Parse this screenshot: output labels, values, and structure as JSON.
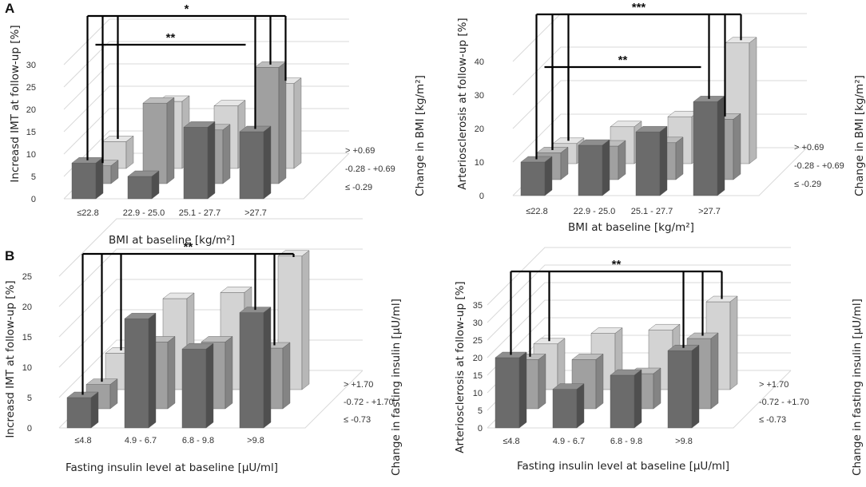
{
  "panel_labels": [
    "A",
    "B"
  ],
  "chart_data": [
    {
      "type": "bar",
      "panel": "A",
      "categories": [
        "≤22.8",
        "22.9 - 25.0",
        "25.1 - 27.7",
        ">27.7"
      ],
      "depth_categories": [
        "≤ -0.29",
        "-0.28 - +0.69",
        "> +0.69"
      ],
      "series": [
        {
          "name": "≤ -0.29",
          "values": [
            8,
            5,
            16,
            15
          ]
        },
        {
          "name": "-0.28 - +0.69",
          "values": [
            4,
            18,
            12,
            26
          ]
        },
        {
          "name": "> +0.69",
          "values": [
            6,
            15,
            14,
            19
          ]
        }
      ],
      "yticks": [
        0,
        5,
        10,
        15,
        20,
        25,
        30
      ],
      "ylim": [
        0,
        30
      ],
      "ylabel": "Increasd IMT at follow-up [%]",
      "xlabel": "BMI at baseline [kg/m²]",
      "zlabel": "Change in BMI [kg/m²]",
      "significance": [
        {
          "label": "*",
          "from": 0,
          "to": 3
        },
        {
          "label": "**",
          "from": 0,
          "to": 3
        }
      ]
    },
    {
      "type": "bar",
      "panel": "A",
      "categories": [
        "≤22.8",
        "22.9 - 25.0",
        "25.1 - 27.7",
        ">27.7"
      ],
      "depth_categories": [
        "≤ -0.29",
        "-0.28 - +0.69",
        "> +0.69"
      ],
      "series": [
        {
          "name": "≤ -0.29",
          "values": [
            10,
            15,
            19,
            28
          ]
        },
        {
          "name": "-0.28 - +0.69",
          "values": [
            8,
            10,
            11,
            18
          ]
        },
        {
          "name": "> +0.69",
          "values": [
            6,
            11,
            14,
            36
          ]
        }
      ],
      "yticks": [
        0,
        10,
        20,
        30,
        40
      ],
      "ylim": [
        0,
        40
      ],
      "ylabel": "Arteriosclerosis at follow-up [%]",
      "xlabel": "BMI at baseline [kg/m²]",
      "zlabel": "Change in BMI [kg/m²]",
      "significance": [
        {
          "label": "***",
          "from": 0,
          "to": 3
        },
        {
          "label": "**",
          "from": 0,
          "to": 3
        }
      ]
    },
    {
      "type": "bar",
      "panel": "B",
      "categories": [
        "≤4.8",
        "4.9 - 6.7",
        "6.8 - 9.8",
        ">9.8"
      ],
      "depth_categories": [
        "≤ -0.73",
        "-0.72 - +1.70",
        "> +1.70"
      ],
      "series": [
        {
          "name": "≤ -0.73",
          "values": [
            5,
            18,
            13,
            19
          ]
        },
        {
          "name": "-0.72 - +1.70",
          "values": [
            4,
            11,
            11,
            10
          ]
        },
        {
          "name": "> +1.70",
          "values": [
            6,
            15,
            16,
            22
          ]
        }
      ],
      "yticks": [
        0,
        5,
        10,
        15,
        20,
        25
      ],
      "ylim": [
        0,
        25
      ],
      "ylabel": "Increasd IMT at follow-up [%]",
      "xlabel": "Fasting insulin level at baseline [µU/ml]",
      "zlabel": "Change in fasting insulin [µU/ml]",
      "significance": [
        {
          "label": "**",
          "from": 0,
          "to": 3
        }
      ]
    },
    {
      "type": "bar",
      "panel": "B",
      "categories": [
        "≤4.8",
        "4.9 - 6.7",
        "6.8 - 9.8",
        ">9.8"
      ],
      "depth_categories": [
        "≤ -0.73",
        "-0.72 - +1.70",
        "> +1.70"
      ],
      "series": [
        {
          "name": "≤ -0.73",
          "values": [
            20,
            11,
            15,
            22
          ]
        },
        {
          "name": "-0.72 - +1.70",
          "values": [
            14,
            14,
            10,
            20
          ]
        },
        {
          "name": "> +1.70",
          "values": [
            13,
            16,
            17,
            25
          ]
        }
      ],
      "yticks": [
        0,
        5,
        10,
        15,
        20,
        25,
        30,
        35
      ],
      "ylim": [
        0,
        35
      ],
      "ylabel": "Arteriosclerosis at follow-up [%]",
      "xlabel": "Fasting insulin level at baseline [µU/ml]",
      "zlabel": "Change in fasting insulin [µU/ml]",
      "significance": [
        {
          "label": "**",
          "from": 0,
          "to": 3
        }
      ]
    }
  ]
}
